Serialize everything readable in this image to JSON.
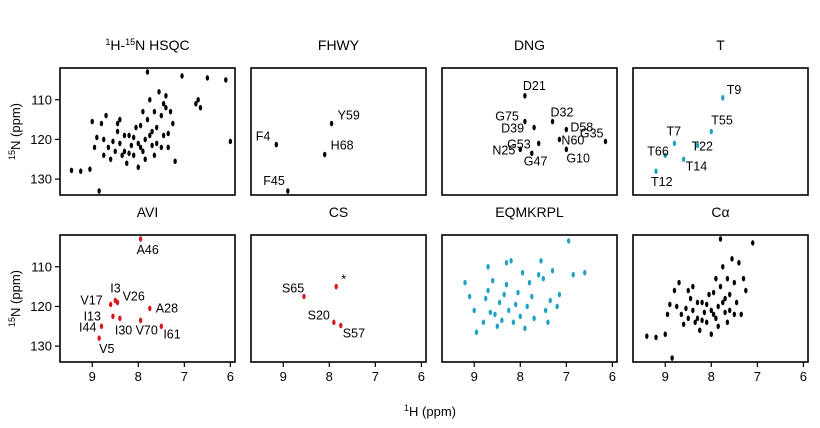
{
  "figure": {
    "xlabel": "1H (ppm)",
    "ylabel": "15N (ppm)",
    "colors": {
      "black": "#000000",
      "red": "#d7191c",
      "cyan": "#1fa2c3"
    }
  },
  "chart_data": [
    {
      "type": "scatter",
      "title": "1H-15N HSQC",
      "color": "#000000",
      "xlim": [
        9.7,
        5.9
      ],
      "ylim": [
        102,
        134
      ],
      "xticks": [],
      "yticks": [
        110,
        120,
        130
      ],
      "series": [
        {
          "points": [
            [
              9.45,
              127.8
            ],
            [
              9.25,
              128
            ],
            [
              9.05,
              127.5
            ],
            [
              8.85,
              133
            ],
            [
              8.75,
              120
            ],
            [
              8.6,
              125
            ],
            [
              8.45,
              116
            ],
            [
              8.4,
              121
            ],
            [
              8.55,
              120.5
            ],
            [
              8.4,
              115
            ],
            [
              8.3,
              123
            ],
            [
              8.25,
              126
            ],
            [
              8.2,
              119
            ],
            [
              8.15,
              121.5
            ],
            [
              8.1,
              124
            ],
            [
              8.05,
              117
            ],
            [
              8.0,
              127
            ],
            [
              7.95,
              122
            ],
            [
              7.9,
              113
            ],
            [
              7.85,
              120
            ],
            [
              7.8,
              103
            ],
            [
              7.75,
              110
            ],
            [
              7.7,
              118
            ],
            [
              7.65,
              124
            ],
            [
              7.6,
              121
            ],
            [
              7.55,
              108
            ],
            [
              7.5,
              114
            ],
            [
              7.45,
              119
            ],
            [
              7.4,
              109
            ],
            [
              7.35,
              122
            ],
            [
              7.3,
              113
            ],
            [
              7.25,
              116
            ],
            [
              7.2,
              125.5
            ],
            [
              7.05,
              104
            ],
            [
              6.75,
              111
            ],
            [
              6.7,
              110
            ],
            [
              6.65,
              112
            ],
            [
              6.5,
              104.5
            ],
            [
              6.1,
              105
            ],
            [
              6.0,
              120.5
            ],
            [
              8.95,
              122
            ],
            [
              8.8,
              116
            ],
            [
              8.7,
              114
            ],
            [
              8.65,
              122
            ],
            [
              8.5,
              123
            ],
            [
              8.35,
              124
            ],
            [
              8.3,
              119
            ],
            [
              8.2,
              123.5
            ],
            [
              8.0,
              121
            ],
            [
              7.9,
              123
            ],
            [
              7.8,
              115
            ],
            [
              7.75,
              119
            ],
            [
              7.7,
              121.5
            ],
            [
              7.65,
              113
            ],
            [
              7.6,
              117
            ],
            [
              7.5,
              122
            ],
            [
              7.45,
              111
            ],
            [
              7.4,
              112
            ],
            [
              7.35,
              118.5
            ],
            [
              8.9,
              119.5
            ],
            [
              8.45,
              118
            ],
            [
              8.1,
              119.5
            ],
            [
              7.95,
              116.5
            ],
            [
              7.85,
              125
            ],
            [
              9.0,
              115.5
            ],
            [
              8.75,
              124
            ]
          ]
        }
      ]
    },
    {
      "type": "scatter",
      "title": "FHWY",
      "color": "#000000",
      "xlim": [
        9.7,
        5.9
      ],
      "ylim": [
        102,
        134
      ],
      "xticks": [],
      "yticks": [],
      "series": [
        {
          "points": [
            {
              "x": 9.15,
              "y": 121.3,
              "label": "F4"
            },
            {
              "x": 7.95,
              "y": 116,
              "label": "Y59"
            },
            {
              "x": 8.1,
              "y": 123.8,
              "label": "H68"
            },
            {
              "x": 8.9,
              "y": 133,
              "label": "F45"
            }
          ]
        }
      ]
    },
    {
      "type": "scatter",
      "title": "DNG",
      "color": "#000000",
      "xlim": [
        9.7,
        5.9
      ],
      "ylim": [
        102,
        134
      ],
      "xticks": [],
      "yticks": [],
      "series": [
        {
          "points": [
            {
              "x": 7.9,
              "y": 109,
              "label": "D21"
            },
            {
              "x": 7.9,
              "y": 115.5,
              "label": "G75"
            },
            {
              "x": 7.7,
              "y": 117,
              "label": "D39"
            },
            {
              "x": 7.3,
              "y": 115.5,
              "label": "D32"
            },
            {
              "x": 7.0,
              "y": 117.5,
              "label": "D58"
            },
            {
              "x": 6.15,
              "y": 120.5,
              "label": "G35"
            },
            {
              "x": 7.6,
              "y": 121,
              "label": "G53"
            },
            {
              "x": 7.15,
              "y": 120,
              "label": "N60"
            },
            {
              "x": 8.0,
              "y": 122.5,
              "label": "N25"
            },
            {
              "x": 7.75,
              "y": 123.5,
              "label": "G47"
            },
            {
              "x": 7.0,
              "y": 122.5,
              "label": "G10"
            }
          ]
        }
      ]
    },
    {
      "type": "scatter",
      "title": "T",
      "color": "#1fa2c3",
      "xlim": [
        9.7,
        5.9
      ],
      "ylim": [
        102,
        134
      ],
      "xticks": [],
      "yticks": [],
      "series": [
        {
          "points": [
            {
              "x": 7.75,
              "y": 109.5,
              "label": "T9"
            },
            {
              "x": 8.0,
              "y": 118,
              "label": "T55"
            },
            {
              "x": 8.8,
              "y": 121,
              "label": "T7"
            },
            {
              "x": 8.3,
              "y": 121.5,
              "label": "T22"
            },
            {
              "x": 9.0,
              "y": 124,
              "label": "T66"
            },
            {
              "x": 8.6,
              "y": 125,
              "label": "T14"
            },
            {
              "x": 9.2,
              "y": 128,
              "label": "T12"
            }
          ]
        }
      ]
    },
    {
      "type": "scatter",
      "title": "AVI",
      "color": "#d7191c",
      "xlim": [
        9.7,
        5.9
      ],
      "ylim": [
        102,
        134
      ],
      "xticks": [
        9,
        8,
        7,
        6
      ],
      "yticks": [
        110,
        120,
        130
      ],
      "series": [
        {
          "points": [
            {
              "x": 7.95,
              "y": 103,
              "label": "A46"
            },
            {
              "x": 8.5,
              "y": 118.5,
              "label": "I3"
            },
            {
              "x": 8.6,
              "y": 119.5,
              "label": "V17"
            },
            {
              "x": 8.45,
              "y": 119,
              "label": "V26"
            },
            {
              "x": 7.75,
              "y": 120.5,
              "label": "A28"
            },
            {
              "x": 8.55,
              "y": 122.5,
              "label": "I13"
            },
            {
              "x": 8.8,
              "y": 125,
              "label": "I44"
            },
            {
              "x": 8.4,
              "y": 123,
              "label": "I30"
            },
            {
              "x": 7.95,
              "y": 123.5,
              "label": "V70"
            },
            {
              "x": 7.5,
              "y": 125,
              "label": "I61"
            },
            {
              "x": 8.85,
              "y": 128,
              "label": "V5"
            }
          ]
        }
      ]
    },
    {
      "type": "scatter",
      "title": "CS",
      "color": "#d7191c",
      "xlim": [
        9.7,
        5.9
      ],
      "ylim": [
        102,
        134
      ],
      "xticks": [
        9,
        8,
        7,
        6
      ],
      "yticks": [],
      "series": [
        {
          "points": [
            {
              "x": 8.55,
              "y": 117.5,
              "label": "S65"
            },
            {
              "x": 7.85,
              "y": 115,
              "label": "*"
            },
            {
              "x": 7.9,
              "y": 124,
              "label": "S20"
            },
            {
              "x": 7.75,
              "y": 124.8,
              "label": "S57"
            }
          ]
        }
      ]
    },
    {
      "type": "scatter",
      "title": "EQMKRPL",
      "color": "#1fa2c3",
      "xlim": [
        9.7,
        5.9
      ],
      "ylim": [
        102,
        134
      ],
      "xticks": [
        9,
        8,
        7,
        6
      ],
      "yticks": [],
      "series": [
        {
          "points": [
            [
              9.2,
              114
            ],
            [
              9.1,
              117.5
            ],
            [
              9.0,
              121
            ],
            [
              8.95,
              126.5
            ],
            [
              8.8,
              124
            ],
            [
              8.75,
              118
            ],
            [
              8.7,
              116
            ],
            [
              8.65,
              121.5
            ],
            [
              8.6,
              113.5
            ],
            [
              8.55,
              122
            ],
            [
              8.5,
              125
            ],
            [
              8.45,
              119
            ],
            [
              8.4,
              123.5
            ],
            [
              8.35,
              117
            ],
            [
              8.3,
              114.5
            ],
            [
              8.25,
              121
            ],
            [
              8.2,
              108.5
            ],
            [
              8.15,
              124
            ],
            [
              8.1,
              119.5
            ],
            [
              8.05,
              116.5
            ],
            [
              8.0,
              122.5
            ],
            [
              7.95,
              111.5
            ],
            [
              7.9,
              125.5
            ],
            [
              7.85,
              120
            ],
            [
              7.8,
              114
            ],
            [
              7.75,
              117.5
            ],
            [
              7.7,
              123
            ],
            [
              7.6,
              112
            ],
            [
              7.55,
              108.5
            ],
            [
              7.45,
              121
            ],
            [
              7.4,
              124
            ],
            [
              7.35,
              118.5
            ],
            [
              7.3,
              111
            ],
            [
              6.95,
              103.5
            ],
            [
              6.85,
              112
            ],
            [
              6.6,
              111.5
            ],
            [
              7.15,
              117
            ],
            [
              7.2,
              120
            ],
            [
              8.7,
              110
            ],
            [
              8.3,
              109
            ],
            [
              7.5,
              113
            ]
          ]
        }
      ]
    },
    {
      "type": "scatter",
      "title": "Cα",
      "color": "#000000",
      "xlim": [
        9.7,
        5.9
      ],
      "ylim": [
        102,
        134
      ],
      "xticks": [
        9,
        8,
        7,
        6
      ],
      "yticks": [],
      "series": [
        {
          "points": [
            [
              9.4,
              127.5
            ],
            [
              9.2,
              127.8
            ],
            [
              9.0,
              127
            ],
            [
              8.85,
              133
            ],
            [
              8.75,
              120
            ],
            [
              8.6,
              124.5
            ],
            [
              8.5,
              116
            ],
            [
              8.4,
              121
            ],
            [
              8.55,
              120.5
            ],
            [
              8.4,
              115
            ],
            [
              8.3,
              123
            ],
            [
              8.25,
              126
            ],
            [
              8.2,
              119
            ],
            [
              8.15,
              121.5
            ],
            [
              8.1,
              124
            ],
            [
              8.05,
              117
            ],
            [
              8.0,
              127
            ],
            [
              7.95,
              122
            ],
            [
              7.9,
              113
            ],
            [
              7.85,
              120
            ],
            [
              7.8,
              103
            ],
            [
              7.75,
              110
            ],
            [
              7.7,
              118
            ],
            [
              7.65,
              124
            ],
            [
              7.6,
              121
            ],
            [
              7.55,
              108
            ],
            [
              7.5,
              114
            ],
            [
              7.45,
              119
            ],
            [
              7.4,
              109
            ],
            [
              7.35,
              122
            ],
            [
              7.3,
              113
            ],
            [
              7.25,
              116
            ],
            [
              7.1,
              104
            ],
            [
              8.95,
              122
            ],
            [
              8.8,
              116
            ],
            [
              8.7,
              114
            ],
            [
              8.65,
              122
            ],
            [
              8.5,
              123
            ],
            [
              8.35,
              124
            ],
            [
              8.3,
              119
            ],
            [
              8.2,
              123.5
            ],
            [
              8.0,
              121
            ],
            [
              7.9,
              123
            ],
            [
              7.8,
              115
            ],
            [
              7.75,
              119
            ],
            [
              7.7,
              121.5
            ],
            [
              7.65,
              113
            ],
            [
              7.6,
              117
            ],
            [
              7.5,
              122
            ],
            [
              8.9,
              119.5
            ],
            [
              8.45,
              118
            ],
            [
              8.1,
              119.5
            ],
            [
              7.95,
              116.5
            ],
            [
              7.85,
              125
            ]
          ]
        }
      ]
    }
  ]
}
